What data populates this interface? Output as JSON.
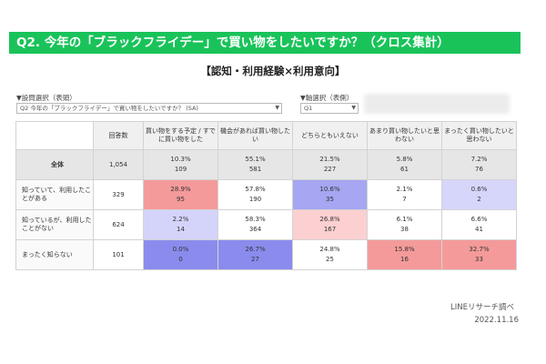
{
  "title": "Q2. 今年の「ブラックフライデー」で買い物をしたいですか？（クロス集計）",
  "subtitle": "【認知・利用経験×利用意向】",
  "selectors": {
    "settings_label": "▼設問選択（表頭）",
    "settings_value": "Q2 今年の「ブラックフライデー」で買い物をしたいですか？ (SA)",
    "axis_label": "▼軸選択（表側）",
    "axis_value": "Q1"
  },
  "table": {
    "respondent_header": "回答数",
    "columns": [
      "買い物をする予定 / すでに買い物をした",
      "機会があれば買い物したい",
      "どちらともいえない",
      "あまり買い物したいと思わない",
      "まったく買い物したいと思わない"
    ],
    "rows": [
      {
        "label": "全体",
        "n": "1,054",
        "cells": [
          {
            "pct": "10.3%",
            "count": "109"
          },
          {
            "pct": "55.1%",
            "count": "581"
          },
          {
            "pct": "21.5%",
            "count": "227"
          },
          {
            "pct": "5.8%",
            "count": "61"
          },
          {
            "pct": "7.2%",
            "count": "76"
          }
        ]
      },
      {
        "label": "知っていて、利用したことがある",
        "n": "329",
        "cells": [
          {
            "pct": "28.9%",
            "count": "95",
            "bg": "#f49a9a"
          },
          {
            "pct": "57.8%",
            "count": "190",
            "bg": "#ffffff"
          },
          {
            "pct": "10.6%",
            "count": "35",
            "bg": "#a6a6f2"
          },
          {
            "pct": "2.1%",
            "count": "7",
            "bg": "#ffffff"
          },
          {
            "pct": "0.6%",
            "count": "2",
            "bg": "#d6d6fb"
          }
        ]
      },
      {
        "label": "知っているが、利用したことがない",
        "n": "624",
        "cells": [
          {
            "pct": "2.2%",
            "count": "14",
            "bg": "#d4d4fb"
          },
          {
            "pct": "58.3%",
            "count": "364",
            "bg": "#ffffff"
          },
          {
            "pct": "26.8%",
            "count": "167",
            "bg": "#fcd0d0"
          },
          {
            "pct": "6.1%",
            "count": "38",
            "bg": "#ffffff"
          },
          {
            "pct": "6.6%",
            "count": "41",
            "bg": "#ffffff"
          }
        ]
      },
      {
        "label": "まったく知らない",
        "n": "101",
        "cells": [
          {
            "pct": "0.0%",
            "count": "0",
            "bg": "#8b8bee"
          },
          {
            "pct": "26.7%",
            "count": "27",
            "bg": "#8b8bee"
          },
          {
            "pct": "24.8%",
            "count": "25",
            "bg": "#ffffff"
          },
          {
            "pct": "15.8%",
            "count": "16",
            "bg": "#f49a9a"
          },
          {
            "pct": "32.7%",
            "count": "33",
            "bg": "#f49a9a"
          }
        ]
      }
    ]
  },
  "footer": {
    "source": "LINEリサーチ調べ",
    "date": "2022.11.16"
  },
  "colors": {
    "banner": "#19c35a",
    "high": "#f49a9a",
    "low": "#8b8bee"
  }
}
